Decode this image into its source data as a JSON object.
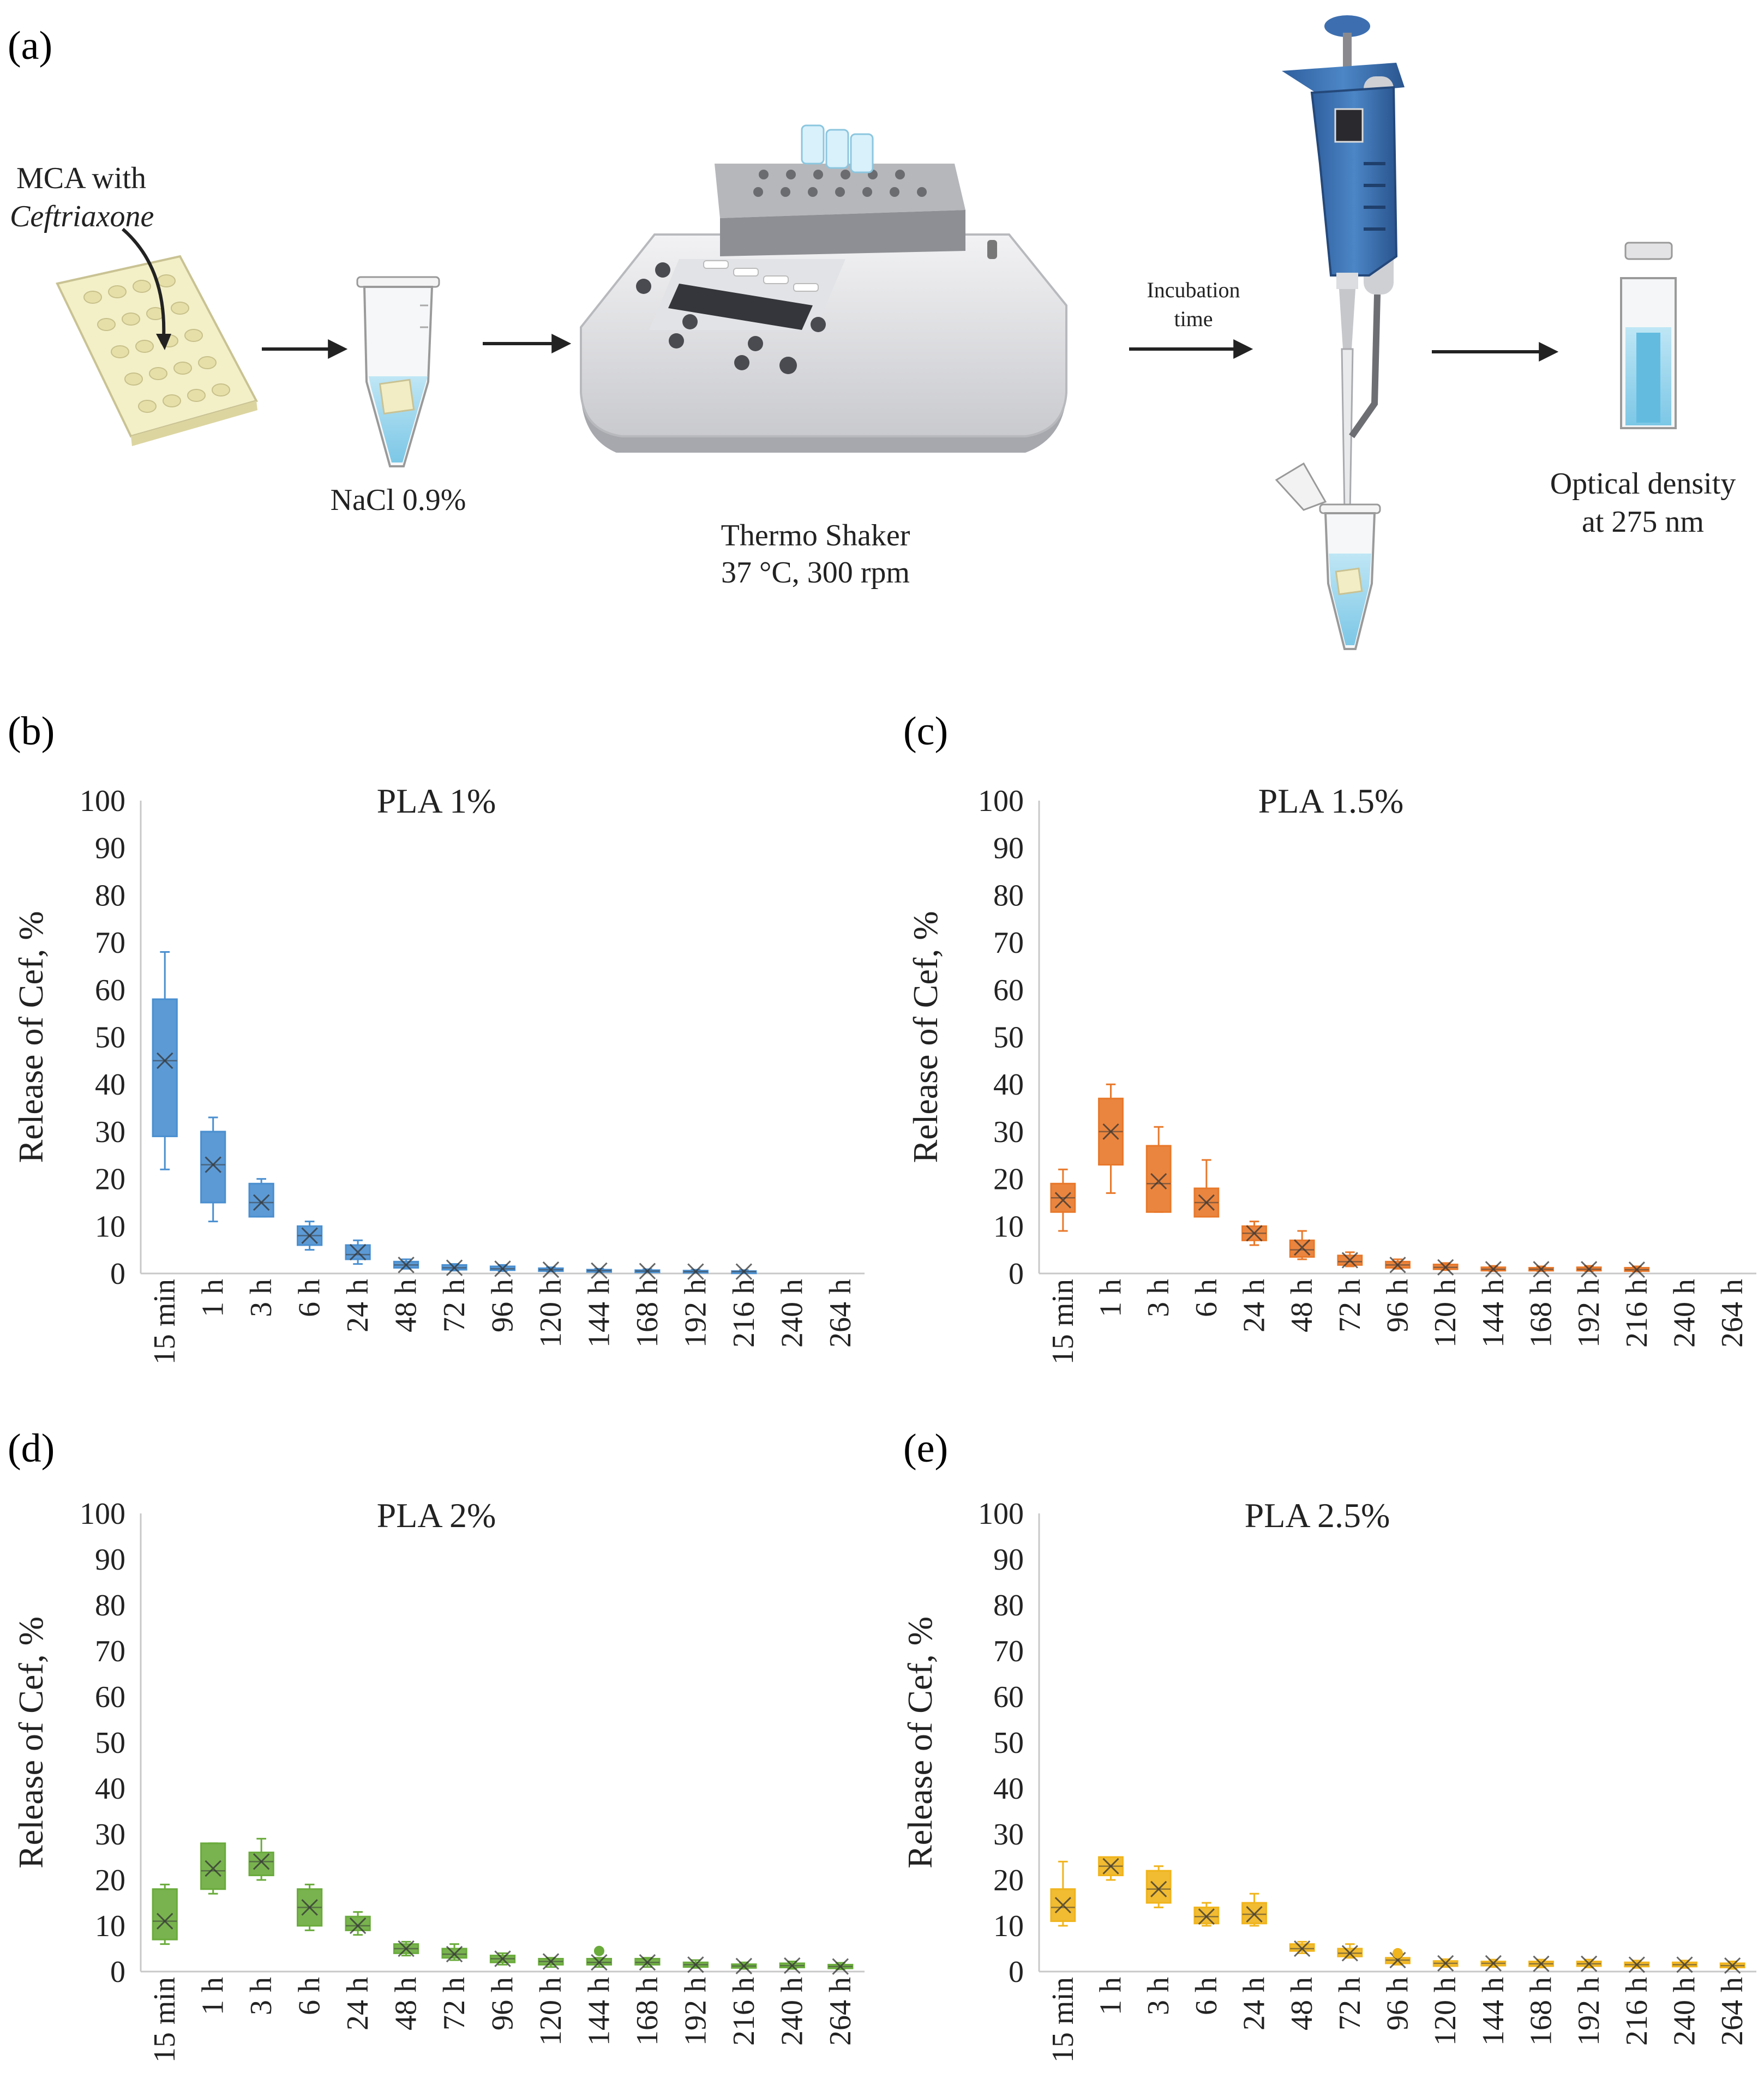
{
  "panel_a": {
    "letter": "(a)",
    "mca_label_line1": "MCA with",
    "mca_label_line2": "Ceftriaxone",
    "tube_label": "NaCl 0.9%",
    "shaker_label_line1": "Thermo Shaker",
    "shaker_label_line2": "37 °C, 300 rpm",
    "incubation_line1": "Incubation",
    "incubation_line2": "time",
    "od_label_line1": "Optical density",
    "od_label_line2": "at 275 nm"
  },
  "colors": {
    "b": "#4a8fd0",
    "c": "#e8782a",
    "d": "#6aab3c",
    "e": "#f0b41c",
    "axis": "#c8c8c8"
  },
  "chart_data": [
    {
      "panel": "b",
      "letter": "(b)",
      "type": "box",
      "title": "PLA 1%",
      "ylabel": "Release of Cef, %",
      "ylim": [
        0,
        100
      ],
      "yticks": [
        0,
        10,
        20,
        30,
        40,
        50,
        60,
        70,
        80,
        90,
        100
      ],
      "categories": [
        "15 min",
        "1 h",
        "3 h",
        "6 h",
        "24 h",
        "48 h",
        "72 h",
        "96 h",
        "120 h",
        "144 h",
        "168 h",
        "192 h",
        "216 h",
        "240 h",
        "264 h"
      ],
      "boxes": [
        {
          "cat": "15 min",
          "min": 22,
          "q1": 29,
          "median": 45,
          "q3": 58,
          "max": 68,
          "mean": 45
        },
        {
          "cat": "1 h",
          "min": 11,
          "q1": 15,
          "median": 23,
          "q3": 30,
          "max": 33,
          "mean": 23
        },
        {
          "cat": "3 h",
          "min": 12,
          "q1": 12,
          "median": 15,
          "q3": 19,
          "max": 20,
          "mean": 15
        },
        {
          "cat": "6 h",
          "min": 5,
          "q1": 6,
          "median": 8,
          "q3": 10,
          "max": 11,
          "mean": 8
        },
        {
          "cat": "24 h",
          "min": 2,
          "q1": 3,
          "median": 4,
          "q3": 6,
          "max": 7,
          "mean": 4.5
        },
        {
          "cat": "48 h",
          "min": 1,
          "q1": 1.2,
          "median": 1.8,
          "q3": 2.5,
          "max": 3,
          "mean": 1.8
        },
        {
          "cat": "72 h",
          "min": 0.6,
          "q1": 0.8,
          "median": 1.2,
          "q3": 1.8,
          "max": 2,
          "mean": 1.2
        },
        {
          "cat": "96 h",
          "min": 0.5,
          "q1": 0.7,
          "median": 1,
          "q3": 1.5,
          "max": 1.8,
          "mean": 1
        },
        {
          "cat": "120 h",
          "min": 0.4,
          "q1": 0.5,
          "median": 0.8,
          "q3": 1.1,
          "max": 1.3,
          "mean": 0.8
        },
        {
          "cat": "144 h",
          "min": 0.3,
          "q1": 0.4,
          "median": 0.6,
          "q3": 0.8,
          "max": 1,
          "mean": 0.6
        },
        {
          "cat": "168 h",
          "min": 0.3,
          "q1": 0.4,
          "median": 0.5,
          "q3": 0.7,
          "max": 0.9,
          "mean": 0.5
        },
        {
          "cat": "192 h",
          "min": 0.2,
          "q1": 0.3,
          "median": 0.4,
          "q3": 0.6,
          "max": 0.8,
          "mean": 0.4
        },
        {
          "cat": "216 h",
          "min": 0.2,
          "q1": 0.3,
          "median": 0.4,
          "q3": 0.5,
          "max": 0.7,
          "mean": 0.4
        }
      ]
    },
    {
      "panel": "c",
      "letter": "(c)",
      "type": "box",
      "title": "PLA 1.5%",
      "ylabel": "Release of Cef, %",
      "ylim": [
        0,
        100
      ],
      "yticks": [
        0,
        10,
        20,
        30,
        40,
        50,
        60,
        70,
        80,
        90,
        100
      ],
      "categories": [
        "15 min",
        "1 h",
        "3 h",
        "6 h",
        "24 h",
        "48 h",
        "72 h",
        "96 h",
        "120 h",
        "144 h",
        "168 h",
        "192 h",
        "216 h",
        "240 h",
        "264 h"
      ],
      "boxes": [
        {
          "cat": "15 min",
          "min": 9,
          "q1": 13,
          "median": 16,
          "q3": 19,
          "max": 22,
          "mean": 15.5
        },
        {
          "cat": "1 h",
          "min": 17,
          "q1": 23,
          "median": 30,
          "q3": 37,
          "max": 40,
          "mean": 30
        },
        {
          "cat": "3 h",
          "min": 13,
          "q1": 13,
          "median": 19,
          "q3": 27,
          "max": 31,
          "mean": 19.5
        },
        {
          "cat": "6 h",
          "min": 12,
          "q1": 12,
          "median": 15,
          "q3": 18,
          "max": 24,
          "mean": 15
        },
        {
          "cat": "24 h",
          "min": 6,
          "q1": 7,
          "median": 8.5,
          "q3": 10,
          "max": 11,
          "mean": 8.5
        },
        {
          "cat": "48 h",
          "min": 3,
          "q1": 3.5,
          "median": 5,
          "q3": 7,
          "max": 9,
          "mean": 5.5
        },
        {
          "cat": "72 h",
          "min": 1.5,
          "q1": 1.8,
          "median": 2.5,
          "q3": 3.8,
          "max": 4.5,
          "mean": 2.8
        },
        {
          "cat": "96 h",
          "min": 1,
          "q1": 1.2,
          "median": 1.8,
          "q3": 2.5,
          "max": 3,
          "mean": 1.8
        },
        {
          "cat": "120 h",
          "min": 0.7,
          "q1": 0.9,
          "median": 1.3,
          "q3": 1.9,
          "max": 2.2,
          "mean": 1.3
        },
        {
          "cat": "144 h",
          "min": 0.5,
          "q1": 0.6,
          "median": 0.9,
          "q3": 1.3,
          "max": 1.6,
          "mean": 0.9
        },
        {
          "cat": "168 h",
          "min": 0.5,
          "q1": 0.6,
          "median": 0.9,
          "q3": 1.2,
          "max": 1.5,
          "mean": 0.9
        },
        {
          "cat": "192 h",
          "min": 0.5,
          "q1": 0.6,
          "median": 0.9,
          "q3": 1.3,
          "max": 1.6,
          "mean": 0.9
        },
        {
          "cat": "216 h",
          "min": 0.4,
          "q1": 0.5,
          "median": 0.8,
          "q3": 1.2,
          "max": 1.5,
          "mean": 0.8
        }
      ]
    },
    {
      "panel": "d",
      "letter": "(d)",
      "type": "box",
      "title": "PLA 2%",
      "ylabel": "Release of Cef, %",
      "ylim": [
        0,
        100
      ],
      "yticks": [
        0,
        10,
        20,
        30,
        40,
        50,
        60,
        70,
        80,
        90,
        100
      ],
      "categories": [
        "15 min",
        "1 h",
        "3 h",
        "6 h",
        "24 h",
        "48 h",
        "72 h",
        "96 h",
        "120 h",
        "144 h",
        "168 h",
        "192 h",
        "216 h",
        "240 h",
        "264 h"
      ],
      "boxes": [
        {
          "cat": "15 min",
          "min": 6,
          "q1": 7,
          "median": 11,
          "q3": 18,
          "max": 19,
          "mean": 11
        },
        {
          "cat": "1 h",
          "min": 17,
          "q1": 18,
          "median": 22,
          "q3": 28,
          "max": 28,
          "mean": 22.5
        },
        {
          "cat": "3 h",
          "min": 20,
          "q1": 21,
          "median": 24,
          "q3": 26,
          "max": 29,
          "mean": 24
        },
        {
          "cat": "6 h",
          "min": 9,
          "q1": 10,
          "median": 14,
          "q3": 18,
          "max": 19,
          "mean": 14
        },
        {
          "cat": "24 h",
          "min": 8,
          "q1": 9,
          "median": 10,
          "q3": 12,
          "max": 13,
          "mean": 10
        },
        {
          "cat": "48 h",
          "min": 3.5,
          "q1": 4,
          "median": 5,
          "q3": 6,
          "max": 6.5,
          "mean": 5
        },
        {
          "cat": "72 h",
          "min": 2.5,
          "q1": 3,
          "median": 3.8,
          "q3": 5,
          "max": 6,
          "mean": 3.8
        },
        {
          "cat": "96 h",
          "min": 1.5,
          "q1": 2,
          "median": 2.8,
          "q3": 3.5,
          "max": 4,
          "mean": 2.8
        },
        {
          "cat": "120 h",
          "min": 1,
          "q1": 1.5,
          "median": 2.2,
          "q3": 2.8,
          "max": 3,
          "mean": 2.2
        },
        {
          "cat": "144 h",
          "min": 1,
          "q1": 1.5,
          "median": 2,
          "q3": 2.8,
          "max": 3,
          "mean": 2,
          "outlier": 4.5
        },
        {
          "cat": "168 h",
          "min": 1,
          "q1": 1.5,
          "median": 2,
          "q3": 2.8,
          "max": 3,
          "mean": 2
        },
        {
          "cat": "192 h",
          "min": 0.8,
          "q1": 1,
          "median": 1.5,
          "q3": 2,
          "max": 2.5,
          "mean": 1.5
        },
        {
          "cat": "216 h",
          "min": 0.6,
          "q1": 0.8,
          "median": 1.2,
          "q3": 1.6,
          "max": 2,
          "mean": 1.2
        },
        {
          "cat": "240 h",
          "min": 0.6,
          "q1": 0.9,
          "median": 1.3,
          "q3": 1.8,
          "max": 2.2,
          "mean": 1.3
        },
        {
          "cat": "264 h",
          "min": 0.5,
          "q1": 0.7,
          "median": 1.1,
          "q3": 1.5,
          "max": 1.9,
          "mean": 1.1
        }
      ]
    },
    {
      "panel": "e",
      "letter": "(e)",
      "type": "box",
      "title": "PLA 2.5%",
      "ylabel": "Release of Cef, %",
      "ylim": [
        0,
        100
      ],
      "yticks": [
        0,
        10,
        20,
        30,
        40,
        50,
        60,
        70,
        80,
        90,
        100
      ],
      "categories": [
        "15 min",
        "1 h",
        "3 h",
        "6 h",
        "24 h",
        "48 h",
        "72 h",
        "96 h",
        "120 h",
        "144 h",
        "168 h",
        "192 h",
        "216 h",
        "240 h",
        "264 h"
      ],
      "boxes": [
        {
          "cat": "15 min",
          "min": 10,
          "q1": 11,
          "median": 14,
          "q3": 18,
          "max": 24,
          "mean": 14.5
        },
        {
          "cat": "1 h",
          "min": 20,
          "q1": 21,
          "median": 23,
          "q3": 25,
          "max": 25,
          "mean": 23
        },
        {
          "cat": "3 h",
          "min": 14,
          "q1": 15,
          "median": 18,
          "q3": 22,
          "max": 23,
          "mean": 18
        },
        {
          "cat": "6 h",
          "min": 10,
          "q1": 10.5,
          "median": 12,
          "q3": 14,
          "max": 15,
          "mean": 12
        },
        {
          "cat": "24 h",
          "min": 10,
          "q1": 10.5,
          "median": 12.5,
          "q3": 15,
          "max": 17,
          "mean": 12.5
        },
        {
          "cat": "48 h",
          "min": 4,
          "q1": 4.5,
          "median": 5,
          "q3": 6,
          "max": 6.5,
          "mean": 5
        },
        {
          "cat": "72 h",
          "min": 3,
          "q1": 3.3,
          "median": 4,
          "q3": 5,
          "max": 6,
          "mean": 4
        },
        {
          "cat": "96 h",
          "min": 1.5,
          "q1": 1.8,
          "median": 2.5,
          "q3": 3,
          "max": 3.2,
          "mean": 2.5,
          "outlier": 4
        },
        {
          "cat": "120 h",
          "min": 1,
          "q1": 1.2,
          "median": 1.8,
          "q3": 2.3,
          "max": 2.7,
          "mean": 1.8
        },
        {
          "cat": "144 h",
          "min": 1,
          "q1": 1.3,
          "median": 1.8,
          "q3": 2.2,
          "max": 2.6,
          "mean": 1.8
        },
        {
          "cat": "168 h",
          "min": 0.9,
          "q1": 1.2,
          "median": 1.7,
          "q3": 2.2,
          "max": 2.6,
          "mean": 1.7
        },
        {
          "cat": "192 h",
          "min": 0.9,
          "q1": 1.2,
          "median": 1.7,
          "q3": 2.2,
          "max": 2.6,
          "mean": 1.7
        },
        {
          "cat": "216 h",
          "min": 0.8,
          "q1": 1.1,
          "median": 1.5,
          "q3": 2,
          "max": 2.4,
          "mean": 1.5
        },
        {
          "cat": "240 h",
          "min": 0.8,
          "q1": 1.1,
          "median": 1.5,
          "q3": 2,
          "max": 2.4,
          "mean": 1.5
        },
        {
          "cat": "264 h",
          "min": 0.6,
          "q1": 0.9,
          "median": 1.3,
          "q3": 1.8,
          "max": 2.2,
          "mean": 1.3
        }
      ]
    }
  ]
}
